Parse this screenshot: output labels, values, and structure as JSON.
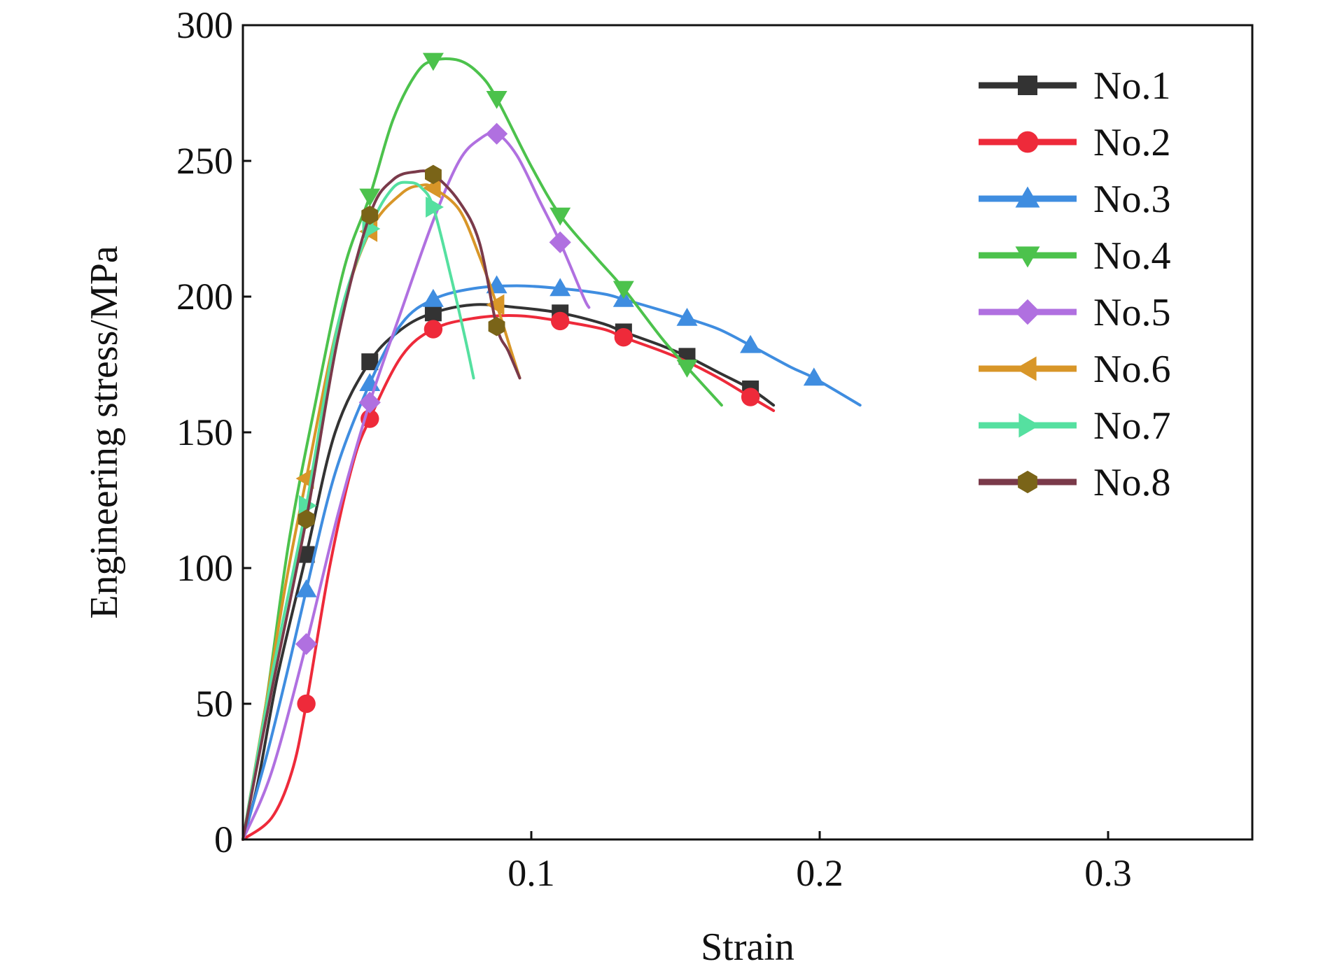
{
  "chart_data": {
    "type": "line",
    "title": "",
    "xlabel": "Strain",
    "ylabel": "Engineering stress/MPa",
    "xlim": [
      0,
      0.35
    ],
    "ylim": [
      0,
      300
    ],
    "xticks": [
      0.1,
      0.2,
      0.3
    ],
    "xtick_labels": [
      "0.1",
      "0.2",
      "0.3"
    ],
    "yticks": [
      0,
      50,
      100,
      150,
      200,
      250,
      300
    ],
    "ytick_labels": [
      "0",
      "50",
      "100",
      "150",
      "200",
      "250",
      "300"
    ],
    "grid": false,
    "legend_position": "top-right",
    "series": [
      {
        "name": "No.1",
        "color": "#333333",
        "marker": "square",
        "points": [
          [
            0.0,
            0
          ],
          [
            0.005,
            20
          ],
          [
            0.012,
            60
          ],
          [
            0.022,
            105
          ],
          [
            0.032,
            150
          ],
          [
            0.044,
            176
          ],
          [
            0.055,
            188
          ],
          [
            0.066,
            194
          ],
          [
            0.08,
            197
          ],
          [
            0.095,
            196
          ],
          [
            0.11,
            194
          ],
          [
            0.125,
            190
          ],
          [
            0.132,
            187
          ],
          [
            0.145,
            182
          ],
          [
            0.154,
            178
          ],
          [
            0.165,
            172
          ],
          [
            0.176,
            166
          ],
          [
            0.184,
            160
          ]
        ],
        "marker_points": [
          [
            0.022,
            105
          ],
          [
            0.044,
            176
          ],
          [
            0.066,
            194
          ],
          [
            0.11,
            194
          ],
          [
            0.132,
            187
          ],
          [
            0.154,
            178
          ],
          [
            0.176,
            166
          ]
        ]
      },
      {
        "name": "No.2",
        "color": "#ee2a3a",
        "marker": "circle",
        "points": [
          [
            0.0,
            0
          ],
          [
            0.01,
            8
          ],
          [
            0.017,
            25
          ],
          [
            0.022,
            50
          ],
          [
            0.03,
            100
          ],
          [
            0.038,
            138
          ],
          [
            0.044,
            155
          ],
          [
            0.055,
            178
          ],
          [
            0.066,
            188
          ],
          [
            0.08,
            192
          ],
          [
            0.095,
            193
          ],
          [
            0.11,
            191
          ],
          [
            0.125,
            188
          ],
          [
            0.132,
            185
          ],
          [
            0.145,
            180
          ],
          [
            0.154,
            176
          ],
          [
            0.165,
            170
          ],
          [
            0.176,
            163
          ],
          [
            0.184,
            158
          ]
        ],
        "marker_points": [
          [
            0.022,
            50
          ],
          [
            0.044,
            155
          ],
          [
            0.066,
            188
          ],
          [
            0.11,
            191
          ],
          [
            0.132,
            185
          ],
          [
            0.176,
            163
          ]
        ]
      },
      {
        "name": "No.3",
        "color": "#3f8de0",
        "marker": "triangle-up",
        "points": [
          [
            0.0,
            0
          ],
          [
            0.008,
            30
          ],
          [
            0.015,
            60
          ],
          [
            0.022,
            92
          ],
          [
            0.032,
            135
          ],
          [
            0.044,
            168
          ],
          [
            0.055,
            190
          ],
          [
            0.066,
            199
          ],
          [
            0.08,
            203
          ],
          [
            0.095,
            204
          ],
          [
            0.11,
            203
          ],
          [
            0.125,
            201
          ],
          [
            0.132,
            199
          ],
          [
            0.145,
            195
          ],
          [
            0.154,
            192
          ],
          [
            0.165,
            188
          ],
          [
            0.176,
            182
          ],
          [
            0.19,
            174
          ],
          [
            0.198,
            170
          ],
          [
            0.214,
            160
          ]
        ],
        "marker_points": [
          [
            0.022,
            92
          ],
          [
            0.044,
            168
          ],
          [
            0.066,
            199
          ],
          [
            0.088,
            204
          ],
          [
            0.11,
            203
          ],
          [
            0.132,
            199
          ],
          [
            0.154,
            192
          ],
          [
            0.176,
            182
          ],
          [
            0.198,
            170
          ]
        ]
      },
      {
        "name": "No.4",
        "color": "#4cc24c",
        "marker": "triangle-down",
        "points": [
          [
            0.0,
            0
          ],
          [
            0.008,
            50
          ],
          [
            0.016,
            110
          ],
          [
            0.025,
            160
          ],
          [
            0.035,
            210
          ],
          [
            0.044,
            237
          ],
          [
            0.052,
            265
          ],
          [
            0.06,
            282
          ],
          [
            0.066,
            287
          ],
          [
            0.075,
            287
          ],
          [
            0.082,
            282
          ],
          [
            0.088,
            273
          ],
          [
            0.1,
            248
          ],
          [
            0.11,
            230
          ],
          [
            0.122,
            215
          ],
          [
            0.132,
            203
          ],
          [
            0.145,
            185
          ],
          [
            0.154,
            174
          ],
          [
            0.166,
            160
          ]
        ],
        "marker_points": [
          [
            0.044,
            237
          ],
          [
            0.066,
            287
          ],
          [
            0.088,
            273
          ],
          [
            0.11,
            230
          ],
          [
            0.132,
            203
          ],
          [
            0.154,
            174
          ]
        ]
      },
      {
        "name": "No.5",
        "color": "#b070e0",
        "marker": "diamond",
        "points": [
          [
            0.0,
            0
          ],
          [
            0.01,
            25
          ],
          [
            0.022,
            72
          ],
          [
            0.033,
            120
          ],
          [
            0.044,
            161
          ],
          [
            0.055,
            195
          ],
          [
            0.066,
            228
          ],
          [
            0.075,
            250
          ],
          [
            0.082,
            258
          ],
          [
            0.088,
            260
          ],
          [
            0.095,
            252
          ],
          [
            0.103,
            235
          ],
          [
            0.11,
            220
          ],
          [
            0.118,
            200
          ],
          [
            0.12,
            196
          ]
        ],
        "marker_points": [
          [
            0.022,
            72
          ],
          [
            0.044,
            161
          ],
          [
            0.088,
            260
          ],
          [
            0.11,
            220
          ]
        ]
      },
      {
        "name": "No.6",
        "color": "#d89628",
        "marker": "triangle-left",
        "points": [
          [
            0.0,
            0
          ],
          [
            0.008,
            50
          ],
          [
            0.015,
            95
          ],
          [
            0.022,
            133
          ],
          [
            0.033,
            190
          ],
          [
            0.044,
            224
          ],
          [
            0.055,
            238
          ],
          [
            0.062,
            241
          ],
          [
            0.066,
            240
          ],
          [
            0.075,
            232
          ],
          [
            0.082,
            215
          ],
          [
            0.088,
            197
          ],
          [
            0.093,
            180
          ],
          [
            0.096,
            170
          ]
        ],
        "marker_points": [
          [
            0.022,
            133
          ],
          [
            0.044,
            224
          ],
          [
            0.066,
            240
          ],
          [
            0.088,
            197
          ]
        ]
      },
      {
        "name": "No.7",
        "color": "#55e0a0",
        "marker": "triangle-right",
        "points": [
          [
            0.0,
            0
          ],
          [
            0.01,
            60
          ],
          [
            0.022,
            123
          ],
          [
            0.033,
            190
          ],
          [
            0.044,
            225
          ],
          [
            0.052,
            240
          ],
          [
            0.058,
            242
          ],
          [
            0.062,
            240
          ],
          [
            0.066,
            233
          ],
          [
            0.072,
            208
          ],
          [
            0.077,
            185
          ],
          [
            0.08,
            170
          ]
        ],
        "marker_points": [
          [
            0.022,
            123
          ],
          [
            0.044,
            225
          ],
          [
            0.066,
            233
          ]
        ]
      },
      {
        "name": "No.8",
        "color": "#7a3a4a",
        "marker": "hexagon",
        "markerColor": "#7a6418",
        "points": [
          [
            0.0,
            0
          ],
          [
            0.01,
            55
          ],
          [
            0.022,
            118
          ],
          [
            0.033,
            185
          ],
          [
            0.044,
            230
          ],
          [
            0.052,
            243
          ],
          [
            0.06,
            246
          ],
          [
            0.066,
            245
          ],
          [
            0.075,
            235
          ],
          [
            0.082,
            220
          ],
          [
            0.088,
            189
          ],
          [
            0.092,
            180
          ],
          [
            0.096,
            170
          ]
        ],
        "marker_points": [
          [
            0.022,
            118
          ],
          [
            0.044,
            230
          ],
          [
            0.066,
            245
          ],
          [
            0.088,
            189
          ]
        ]
      }
    ]
  }
}
